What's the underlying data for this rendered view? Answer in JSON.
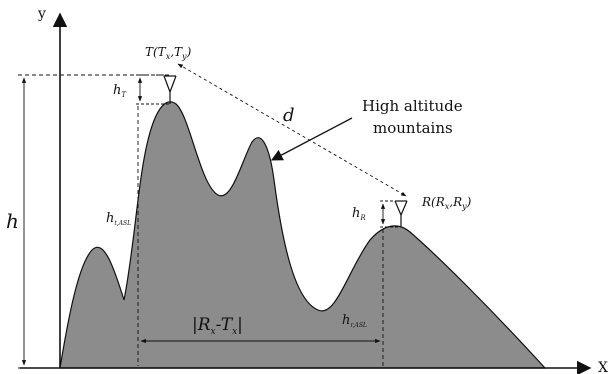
{
  "labels": {
    "y_axis": "y",
    "x_axis": "X",
    "h": "h",
    "h_sub": "",
    "hT_main": "h",
    "hT_sub": "T",
    "hR_main": "h",
    "hR_sub": "R",
    "hTASL_main": "h",
    "hTASL_sub": "t,ASL",
    "hRASL_main": "h",
    "hRASL_sub": "r,ASL",
    "transmitter": "T(T",
    "transmitter_x_sub": "x",
    "transmitter_mid": ",T",
    "transmitter_y_sub": "y",
    "transmitter_end": ")",
    "receiver": "R(R",
    "receiver_x_sub": "x",
    "receiver_mid": ",R",
    "receiver_y_sub": "y",
    "receiver_end": ")",
    "distance": "d",
    "horizontal_distance": "|R",
    "horizontal_distance_sub1": "x",
    "horizontal_distance_mid": "-T",
    "horizontal_distance_sub2": "x",
    "horizontal_distance_end": "|",
    "mountain_callout_line1": "High altitude",
    "mountain_callout_line2": "mountains"
  },
  "colors": {
    "terrain_fill": "#8c8c8c",
    "terrain_stroke": "#111111",
    "line": "#111111"
  }
}
